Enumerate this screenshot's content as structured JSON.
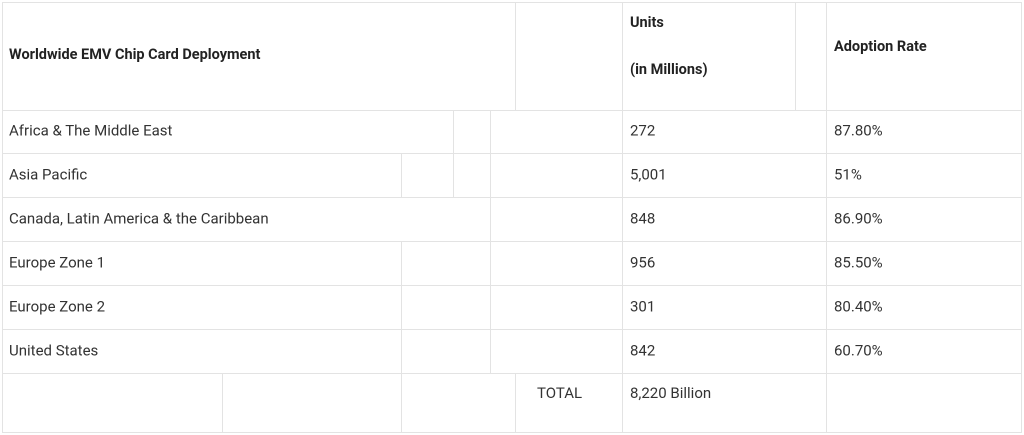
{
  "table": {
    "header": {
      "title": "Worldwide EMV Chip Card Deployment",
      "units": [
        "Units",
        "(in Millions)"
      ],
      "rate": "Adoption Rate"
    },
    "rows": [
      [
        "Africa & The Middle East",
        "272",
        "87.80%"
      ],
      [
        "Asia Pacific",
        "5,001",
        "51%"
      ],
      [
        "Canada, Latin America & the Caribbean",
        "848",
        "86.90%"
      ],
      [
        "Europe Zone 1",
        "956",
        "85.50%"
      ],
      [
        "Europe Zone 2",
        "301",
        "80.40%"
      ],
      [
        "United States",
        "842",
        "60.70%"
      ]
    ],
    "total": {
      "label": "TOTAL",
      "value": "8,220 Billion"
    }
  }
}
